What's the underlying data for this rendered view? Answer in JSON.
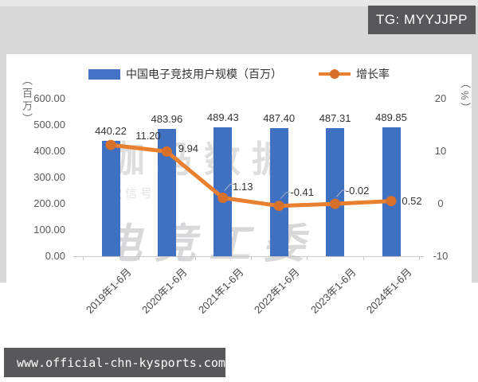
{
  "badges": {
    "telegram": "TG: MYYJJPP",
    "website": "www.official-chn-kysports.com"
  },
  "watermarks": {
    "primary": "伽马数据",
    "secondary": "微信号",
    "tertiary": "电竞工委"
  },
  "chart_data": {
    "type": "bar+line combo",
    "categories": [
      "2019年1-6月",
      "2020年1-6月",
      "2021年1-6月",
      "2022年1-6月",
      "2023年1-6月",
      "2024年1-6月"
    ],
    "series": [
      {
        "name": "中国电子竞技用户规模（百万）",
        "type": "bar",
        "axis": "left",
        "color": "#4070c0",
        "values": [
          440.22,
          483.96,
          489.43,
          487.4,
          487.31,
          489.85
        ],
        "value_labels": [
          "440.22",
          "483.96",
          "489.43",
          "487.40",
          "487.31",
          "489.85"
        ]
      },
      {
        "name": "增长率",
        "type": "line",
        "axis": "right",
        "color": "#e8802f",
        "values": [
          11.2,
          9.94,
          1.13,
          -0.41,
          -0.02,
          0.52
        ],
        "value_labels": [
          "11.20",
          "9.94",
          "1.13",
          "-0.41",
          "-0.02",
          "0.52"
        ]
      }
    ],
    "left_axis": {
      "title": "（百万）",
      "min": 0,
      "max": 600,
      "tick_labels": [
        "600.00",
        "500.00",
        "400.00",
        "300.00",
        "200.00",
        "100.00",
        "0.00"
      ],
      "tick_values": [
        600,
        500,
        400,
        300,
        200,
        100,
        0
      ]
    },
    "right_axis": {
      "title": "（%）",
      "min": -10,
      "max": 20,
      "tick_labels": [
        "20",
        "10",
        "0",
        "-10"
      ],
      "tick_values": [
        20,
        10,
        0,
        -10
      ]
    },
    "grid": false,
    "legend_position": "top-center"
  }
}
